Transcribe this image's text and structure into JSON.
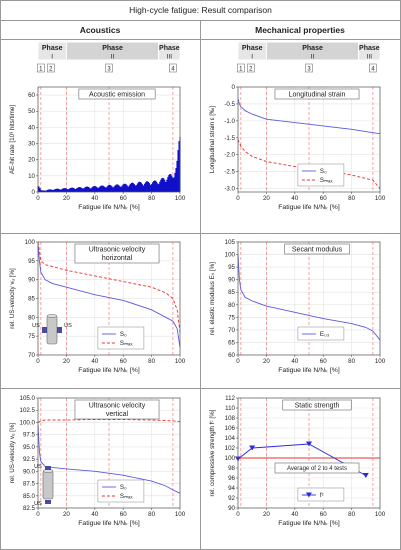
{
  "page_title": "High-cycle fatigue: Result comparison",
  "columns": [
    "Acoustics",
    "Mechanical properties"
  ],
  "phase_labels": [
    {
      "name": "Phase",
      "num": "I"
    },
    {
      "name": "Phase",
      "num": "II"
    },
    {
      "name": "Phase",
      "num": "III"
    }
  ],
  "markers": [
    "1",
    "2",
    "3",
    "4"
  ],
  "chart_data": [
    {
      "type": "bar",
      "title": "Acoustic emission",
      "title2": "",
      "xlabel": "Fatigue life N/Nₖ [%]",
      "ylabel": "AE-hit rate [10³ hits/time]",
      "xlim": [
        0,
        100
      ],
      "ylim": [
        0,
        65
      ],
      "xticks": [
        0,
        20,
        40,
        60,
        80,
        100
      ],
      "yticks": [
        0,
        10,
        20,
        30,
        40,
        50,
        60
      ],
      "vlines": [
        2,
        20,
        50,
        95
      ],
      "series": [
        {
          "name": "",
          "color": "#1010c8",
          "x": [
            0,
            1,
            2,
            3,
            5,
            10,
            20,
            30,
            40,
            50,
            60,
            70,
            80,
            85,
            90,
            93,
            95,
            97,
            98,
            99,
            100
          ],
          "values": [
            5,
            3,
            1,
            0.8,
            1,
            1.5,
            2,
            2.5,
            3,
            3.5,
            4,
            5,
            5.5,
            6,
            8,
            9,
            10,
            12,
            16,
            25,
            36
          ]
        }
      ]
    },
    {
      "type": "line",
      "title": "Longitudinal strain",
      "title2": "",
      "xlabel": "Fatigue life N/Nₖ [%]",
      "ylabel": "Longitudinal strain ε [‰]",
      "xlim": [
        0,
        100
      ],
      "ylim": [
        -3.1,
        0
      ],
      "xticks": [
        0,
        20,
        40,
        60,
        80,
        100
      ],
      "yticks": [
        0,
        -0.5,
        -1.0,
        -1.5,
        -2.0,
        -2.5,
        -3.0
      ],
      "vlines": [
        2,
        20,
        50,
        95
      ],
      "legend": "bottom-center",
      "series": [
        {
          "name": "S₀",
          "color": "#5a5ae6",
          "dash": false,
          "x": [
            0,
            1,
            2,
            5,
            10,
            20,
            40,
            60,
            80,
            95,
            100
          ],
          "values": [
            -0.35,
            -0.5,
            -0.58,
            -0.7,
            -0.8,
            -0.95,
            -1.05,
            -1.15,
            -1.25,
            -1.35,
            -1.38
          ]
        },
        {
          "name": "Sₘₐₓ",
          "color": "#e83030",
          "dash": true,
          "x": [
            0,
            1,
            2,
            5,
            10,
            20,
            40,
            60,
            80,
            95,
            97,
            100
          ],
          "values": [
            -1.55,
            -1.65,
            -1.75,
            -1.9,
            -2.05,
            -2.2,
            -2.35,
            -2.45,
            -2.6,
            -2.75,
            -2.85,
            -3.0
          ]
        }
      ]
    },
    {
      "type": "line",
      "title": "Ultrasonic velocity",
      "title2": "horizontal",
      "xlabel": "Fatigue life N/Nₖ [%]",
      "ylabel": "rel. US-velocity vᵤ [%]",
      "xlim": [
        0,
        100
      ],
      "ylim": [
        70,
        100
      ],
      "xticks": [
        0,
        20,
        40,
        60,
        80,
        100
      ],
      "yticks": [
        70,
        75,
        80,
        85,
        90,
        95,
        100
      ],
      "vlines": [
        2,
        20,
        50,
        95
      ],
      "legend": "bottom-center",
      "series": [
        {
          "name": "S₀",
          "color": "#5a5ae6",
          "dash": false,
          "x": [
            0,
            1,
            2,
            5,
            10,
            20,
            40,
            60,
            80,
            90,
            95,
            98,
            100
          ],
          "values": [
            99,
            95,
            92,
            90,
            89,
            88,
            86,
            84.5,
            82,
            80,
            79,
            77,
            72
          ]
        },
        {
          "name": "Sₘₐₓ",
          "color": "#e83030",
          "dash": true,
          "x": [
            0,
            2,
            5,
            10,
            20,
            40,
            60,
            80,
            90,
            95,
            98,
            100
          ],
          "values": [
            100,
            95,
            94,
            93.5,
            92.5,
            91,
            89.5,
            88,
            86.5,
            85,
            82,
            76
          ]
        }
      ]
    },
    {
      "type": "line",
      "title": "Secant modulus",
      "title2": "",
      "xlabel": "Fatigue life N/Nₖ [%]",
      "ylabel": "rel. elastic modulus Eₛ [%]",
      "xlim": [
        0,
        100
      ],
      "ylim": [
        60,
        105
      ],
      "xticks": [
        0,
        20,
        40,
        60,
        80,
        100
      ],
      "yticks": [
        60,
        65,
        70,
        75,
        80,
        85,
        90,
        95,
        100,
        105
      ],
      "vlines": [
        2,
        20,
        50,
        95
      ],
      "legend": "bottom-center",
      "series": [
        {
          "name": "E₀₃",
          "color": "#5a5ae6",
          "dash": false,
          "x": [
            0,
            1,
            2,
            5,
            10,
            20,
            40,
            60,
            80,
            90,
            95,
            100
          ],
          "values": [
            100,
            90,
            86,
            83,
            81.5,
            79.5,
            77,
            74.5,
            72.5,
            71,
            69.5,
            66
          ]
        }
      ]
    },
    {
      "type": "line",
      "title": "Ultrasonic velocity",
      "title2": "vertical",
      "xlabel": "Fatigue life N/Nₖ [%]",
      "ylabel": "rel. US-velocity vᵤ [%]",
      "xlim": [
        0,
        100
      ],
      "ylim": [
        82.5,
        105
      ],
      "xticks": [
        0,
        20,
        40,
        60,
        80,
        100
      ],
      "yticks": [
        82.5,
        85.0,
        87.5,
        90.0,
        92.5,
        95.0,
        97.5,
        100.0,
        102.5,
        105.0
      ],
      "vlines": [
        2,
        20,
        50,
        95
      ],
      "legend": "bottom-center",
      "series": [
        {
          "name": "S₀",
          "color": "#5a5ae6",
          "dash": false,
          "x": [
            0,
            1,
            2,
            5,
            10,
            20,
            40,
            60,
            80,
            90,
            95,
            100
          ],
          "values": [
            99.5,
            94,
            92,
            91,
            90.8,
            90.5,
            90,
            89.2,
            88,
            87,
            86.2,
            85.5
          ]
        },
        {
          "name": "Sₘₐₓ",
          "color": "#e83030",
          "dash": true,
          "x": [
            0,
            2,
            5,
            10,
            20,
            40,
            60,
            80,
            90,
            95,
            100
          ],
          "values": [
            100,
            100.3,
            100.5,
            100.5,
            100.5,
            100.6,
            100.6,
            100.5,
            100.4,
            100.3,
            100.2
          ]
        }
      ]
    },
    {
      "type": "scatter",
      "title": "Static strength",
      "title2": "",
      "xlabel": "Fatigue life N/Nₖ [%]",
      "ylabel": "rel. compressive strength fᶜ [%]",
      "xlim": [
        0,
        100
      ],
      "ylim": [
        90,
        112
      ],
      "xticks": [
        0,
        20,
        40,
        60,
        80,
        100
      ],
      "yticks": [
        90,
        92,
        94,
        96,
        98,
        100,
        102,
        104,
        106,
        108,
        110,
        112
      ],
      "vlines": [
        2,
        20,
        50,
        95
      ],
      "hline": {
        "y": 100,
        "color": "#e83030"
      },
      "note": "Average of 2 to 4 tests",
      "legend": "bottom-center",
      "series": [
        {
          "name": "fᶜ",
          "color": "#2a2ae0",
          "dash": false,
          "x": [
            0,
            10,
            50,
            90
          ],
          "values": [
            99.8,
            102,
            102.8,
            96.5
          ]
        }
      ]
    }
  ]
}
